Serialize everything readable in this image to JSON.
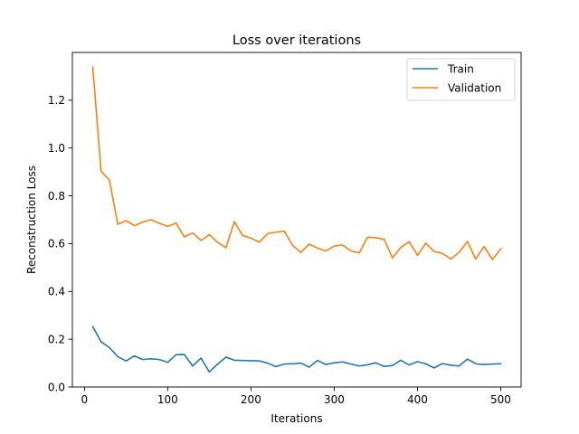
{
  "chart_data": {
    "type": "line",
    "title": "Loss over iterations",
    "xlabel": "Iterations",
    "ylabel": "Reconstruction Loss",
    "xlim": [
      -14.5,
      524.5
    ],
    "ylim": [
      0.0,
      1.4
    ],
    "xticks": [
      0,
      100,
      200,
      300,
      400,
      500
    ],
    "yticks": [
      0.0,
      0.2,
      0.4,
      0.6,
      0.8,
      1.0,
      1.2
    ],
    "xtick_labels": [
      "0",
      "100",
      "200",
      "300",
      "400",
      "500"
    ],
    "ytick_labels": [
      "0.0",
      "0.2",
      "0.4",
      "0.6",
      "0.8",
      "1.0",
      "1.2"
    ],
    "grid": false,
    "legend_position": "top-right",
    "x": [
      10,
      20,
      30,
      40,
      50,
      60,
      70,
      80,
      90,
      100,
      110,
      120,
      130,
      140,
      150,
      160,
      170,
      180,
      190,
      200,
      210,
      220,
      230,
      240,
      250,
      260,
      270,
      280,
      290,
      300,
      310,
      320,
      330,
      340,
      350,
      360,
      370,
      380,
      390,
      400,
      410,
      420,
      430,
      440,
      450,
      460,
      470,
      480,
      490,
      500
    ],
    "series": [
      {
        "name": "Train",
        "color": "#1f77b4",
        "values": [
          0.253,
          0.189,
          0.165,
          0.127,
          0.109,
          0.13,
          0.115,
          0.118,
          0.115,
          0.103,
          0.135,
          0.136,
          0.088,
          0.121,
          0.063,
          0.096,
          0.125,
          0.112,
          0.111,
          0.11,
          0.109,
          0.1,
          0.085,
          0.096,
          0.097,
          0.1,
          0.083,
          0.111,
          0.094,
          0.101,
          0.105,
          0.096,
          0.088,
          0.093,
          0.101,
          0.086,
          0.09,
          0.112,
          0.092,
          0.106,
          0.097,
          0.08,
          0.098,
          0.091,
          0.088,
          0.117,
          0.097,
          0.094,
          0.096,
          0.097
        ]
      },
      {
        "name": "Validation",
        "color": "#ff7f0e",
        "values": [
          1.338,
          0.902,
          0.866,
          0.681,
          0.696,
          0.675,
          0.69,
          0.7,
          0.685,
          0.672,
          0.686,
          0.628,
          0.645,
          0.613,
          0.638,
          0.605,
          0.583,
          0.692,
          0.634,
          0.623,
          0.606,
          0.642,
          0.648,
          0.652,
          0.593,
          0.563,
          0.598,
          0.581,
          0.569,
          0.59,
          0.594,
          0.57,
          0.561,
          0.627,
          0.625,
          0.618,
          0.54,
          0.584,
          0.608,
          0.551,
          0.602,
          0.567,
          0.559,
          0.536,
          0.563,
          0.609,
          0.535,
          0.588,
          0.533,
          0.578
        ]
      }
    ]
  }
}
